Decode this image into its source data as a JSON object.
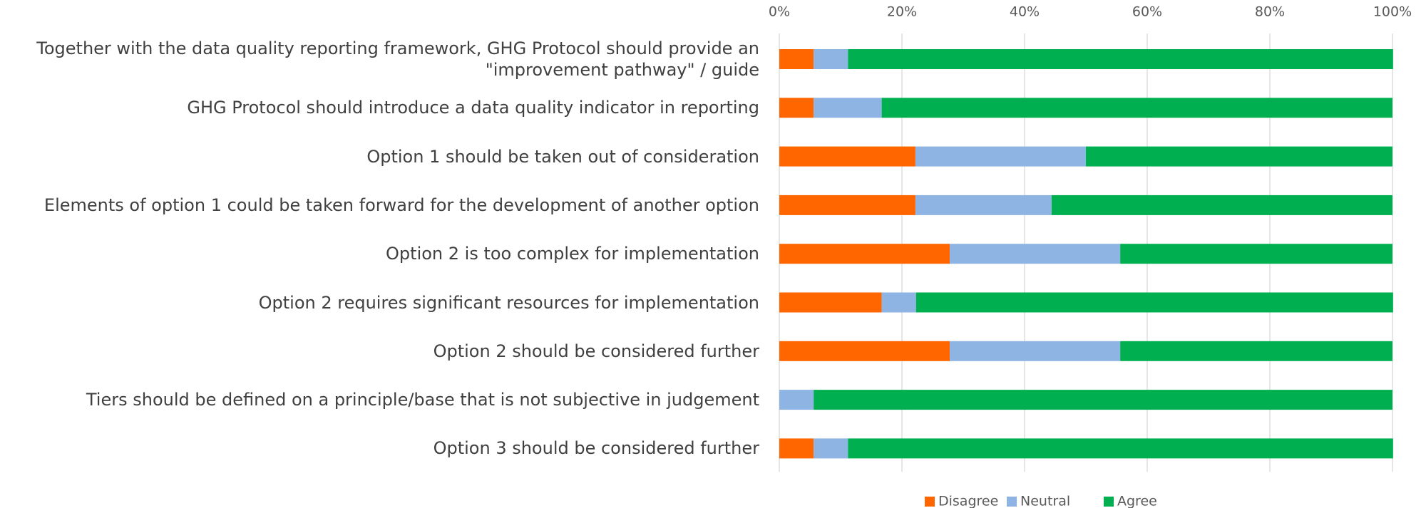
{
  "chart_data": {
    "type": "stacked_bar_horizontal",
    "categories": [
      "Together with the data quality reporting framework, GHG Protocol should provide an \"improvement pathway\" / guide",
      "GHG Protocol should introduce a data quality indicator in reporting",
      "Option 1 should be taken out of consideration",
      "Elements of option 1 could be taken forward for the development of another option",
      "Option 2 is too complex for implementation",
      "Option 2 requires significant resources for implementation",
      "Option 2 should be considered further",
      "Tiers should be defined on a principle/base that is not subjective in judgement",
      "Option 3 should be considered further"
    ],
    "series": [
      {
        "name": "Disagree",
        "color": "#ff6600",
        "values": [
          5.6,
          5.6,
          22.2,
          22.2,
          27.8,
          16.7,
          27.8,
          0,
          5.6
        ]
      },
      {
        "name": "Neutral",
        "color": "#8eb4e3",
        "values": [
          5.6,
          11.1,
          27.8,
          22.2,
          27.8,
          5.6,
          27.8,
          5.6,
          5.6
        ]
      },
      {
        "name": "Agree",
        "color": "#00b050",
        "values": [
          88.9,
          83.3,
          50,
          55.6,
          44.4,
          77.8,
          44.4,
          94.4,
          88.9
        ]
      }
    ],
    "xlim": [
      0,
      100
    ],
    "xticks": [
      {
        "value": 0,
        "label": "0%"
      },
      {
        "value": 20,
        "label": "20%"
      },
      {
        "value": 40,
        "label": "40%"
      },
      {
        "value": 60,
        "label": "60%"
      },
      {
        "value": 80,
        "label": "80%"
      },
      {
        "value": 100,
        "label": "100%"
      }
    ],
    "grid": true,
    "legend": "bottom"
  }
}
